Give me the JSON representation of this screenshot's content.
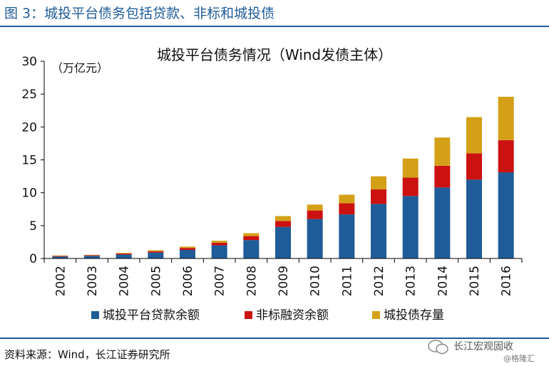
{
  "figure": {
    "title": "图 3：城投平台债务包括贷款、非标和城投债",
    "source": "资料来源：Wind，长江证券研究所"
  },
  "watermark": {
    "name": "长江宏观固收",
    "sub": "@格隆汇"
  },
  "colors": {
    "brand": "#1f5c99",
    "loan": "#1f5c99",
    "nonstandard": "#cc1111",
    "bond": "#d4a017"
  },
  "chart_data": {
    "type": "bar",
    "stacked": true,
    "title": "城投平台债务情况（Wind发债主体）",
    "ylabel": "（万亿元）",
    "xlabel": "",
    "ylim": [
      0,
      30
    ],
    "yticks": [
      "0",
      "5",
      "10",
      "15",
      "20",
      "25",
      "30"
    ],
    "legend_position": "bottom",
    "categories": [
      "2002",
      "2003",
      "2004",
      "2005",
      "2006",
      "2007",
      "2008",
      "2009",
      "2010",
      "2011",
      "2012",
      "2013",
      "2014",
      "2015",
      "2016"
    ],
    "series": [
      {
        "name": "城投平台贷款余额",
        "values": [
          0.3,
          0.4,
          0.6,
          0.9,
          1.3,
          2.0,
          2.8,
          4.8,
          6.0,
          6.7,
          8.3,
          9.5,
          10.8,
          12.0,
          13.1
        ]
      },
      {
        "name": "非标融资余额",
        "values": [
          0.1,
          0.1,
          0.15,
          0.2,
          0.3,
          0.4,
          0.6,
          0.9,
          1.3,
          1.7,
          2.2,
          2.8,
          3.3,
          4.0,
          4.9
        ]
      },
      {
        "name": "城投债存量",
        "values": [
          0.05,
          0.05,
          0.1,
          0.15,
          0.2,
          0.3,
          0.45,
          0.75,
          0.9,
          1.3,
          2.0,
          2.9,
          4.3,
          5.5,
          6.6
        ]
      }
    ]
  }
}
